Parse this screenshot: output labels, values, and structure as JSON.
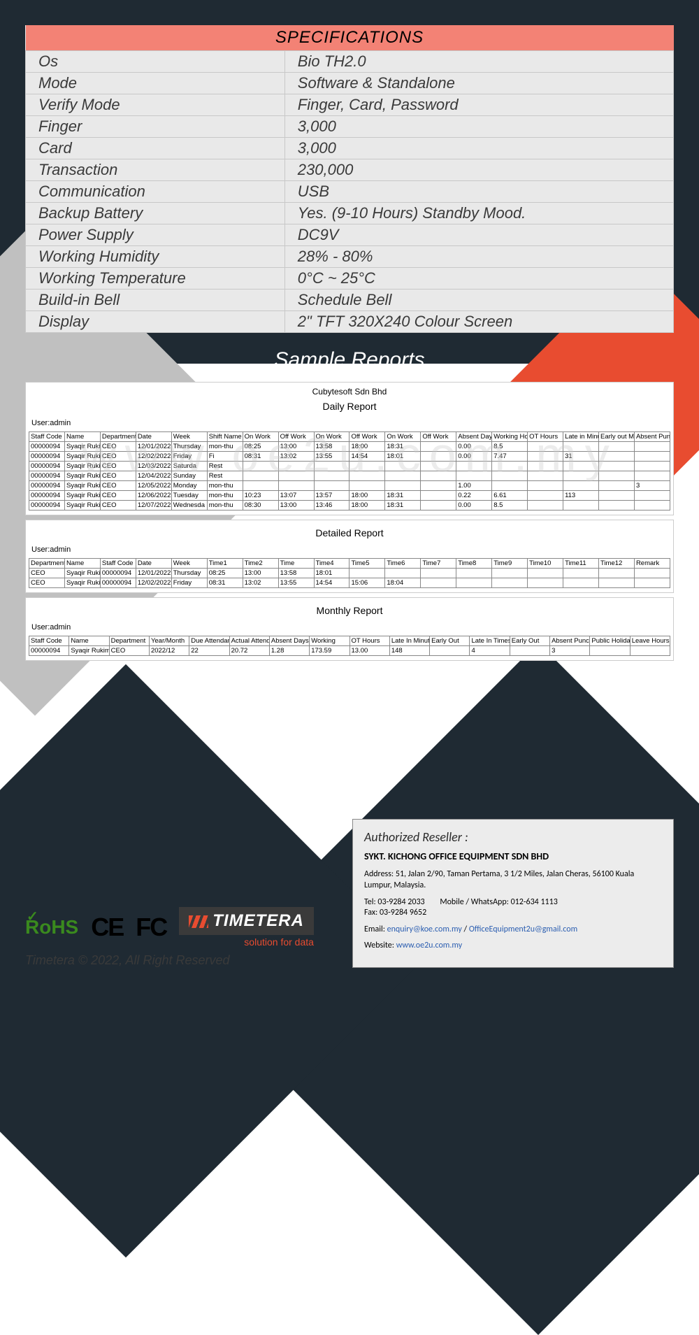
{
  "colors": {
    "dark": "#1f2a33",
    "orange": "#e84c30",
    "salmon": "#f38275",
    "grayBg": "#e9e9e9",
    "grayTri": "#c0c0c0",
    "link": "#2a5db0"
  },
  "specTable": {
    "header": "SPECIFICATIONS",
    "rows": [
      {
        "label": "Os",
        "value": "Bio TH2.0"
      },
      {
        "label": "Mode",
        "value": "Software & Standalone"
      },
      {
        "label": "Verify Mode",
        "value": "Finger, Card, Password"
      },
      {
        "label": "Finger",
        "value": "3,000"
      },
      {
        "label": "Card",
        "value": "3,000"
      },
      {
        "label": "Transaction",
        "value": "230,000"
      },
      {
        "label": "Communication",
        "value": "USB"
      },
      {
        "label": "Backup Battery",
        "value": "Yes. (9-10 Hours) Standby Mood."
      },
      {
        "label": "Power Supply",
        "value": "DC9V"
      },
      {
        "label": "Working Humidity",
        "value": "28% - 80%"
      },
      {
        "label": "Working Temperature",
        "value": "0°C ~ 25°C"
      },
      {
        "label": "Build-in Bell",
        "value": "Schedule Bell"
      },
      {
        "label": "Display",
        "value": "2\" TFT 320X240 Colour Screen"
      }
    ]
  },
  "sectionTitle": "Sample Reports",
  "watermark": "www.oe2u.com.my",
  "dailyReport": {
    "company": "Cubytesoft Sdn Bhd",
    "title": "Daily Report",
    "user": "User:admin",
    "columns": [
      "Staff Code",
      "Name",
      "Department",
      "Date",
      "Week",
      "Shift Name",
      "On Work",
      "Off Work",
      "On Work",
      "Off Work",
      "On Work",
      "Off Work",
      "Absent Days",
      "Working Hours",
      "OT Hours",
      "Late in Minutes",
      "Early out Minutes",
      "Absent Punch"
    ],
    "rows": [
      [
        "00000094",
        "Syaqir Rukimin",
        "CEO",
        "12/01/2022",
        "Thursday",
        "mon-thu",
        "08:25",
        "13:00",
        "13:58",
        "18:00",
        "18:31",
        "",
        "0.00",
        "8.5",
        "",
        "",
        "",
        ""
      ],
      [
        "00000094",
        "Syaqir Rukimin",
        "CEO",
        "12/02/2022",
        "Friday",
        "Fi",
        "08:31",
        "13:02",
        "13:55",
        "14:54",
        "18:01",
        "",
        "0.00",
        "7.47",
        "",
        "31",
        "",
        ""
      ],
      [
        "00000094",
        "Syaqir Rukimin",
        "CEO",
        "12/03/2022",
        "Saturda",
        "Rest",
        "",
        "",
        "",
        "",
        "",
        "",
        "",
        "",
        "",
        "",
        "",
        ""
      ],
      [
        "00000094",
        "Syaqir Rukimin",
        "CEO",
        "12/04/2022",
        "Sunday",
        "Rest",
        "",
        "",
        "",
        "",
        "",
        "",
        "",
        "",
        "",
        "",
        "",
        ""
      ],
      [
        "00000094",
        "Syaqir Rukimin",
        "CEO",
        "12/05/2022",
        "Monday",
        "mon-thu",
        "",
        "",
        "",
        "",
        "",
        "",
        "1.00",
        "",
        "",
        "",
        "",
        "3"
      ],
      [
        "00000094",
        "Syaqir Rukimin",
        "CEO",
        "12/06/2022",
        "Tuesday",
        "mon-thu",
        "10:23",
        "13:07",
        "13:57",
        "18:00",
        "18:31",
        "",
        "0.22",
        "6.61",
        "",
        "113",
        "",
        ""
      ],
      [
        "00000094",
        "Syaqir Rukimin",
        "CEO",
        "12/07/2022",
        "Wednesda",
        "mon-thu",
        "08:30",
        "13:00",
        "13:46",
        "18:00",
        "18:31",
        "",
        "0.00",
        "8.5",
        "",
        "",
        "",
        ""
      ]
    ]
  },
  "detailedReport": {
    "title": "Detailed Report",
    "user": "User:admin",
    "columns": [
      "Department",
      "Name",
      "Staff Code",
      "Date",
      "Week",
      "Time1",
      "Time2",
      "Time",
      "Time4",
      "Time5",
      "Time6",
      "Time7",
      "Time8",
      "Time9",
      "Time10",
      "Time11",
      "Time12",
      "Remark"
    ],
    "rows": [
      [
        "CEO",
        "Syaqir Rukimin",
        "00000094",
        "12/01/2022",
        "Thursday",
        "08:25",
        "13:00",
        "13:58",
        "18:01",
        "",
        "",
        "",
        "",
        "",
        "",
        "",
        "",
        ""
      ],
      [
        "CEO",
        "Syaqir Rukimin",
        "00000094",
        "12/02/2022",
        "Friday",
        "08:31",
        "13:02",
        "13:55",
        "14:54",
        "15:06",
        "18:04",
        "",
        "",
        "",
        "",
        "",
        "",
        ""
      ]
    ]
  },
  "monthlyReport": {
    "title": "Monthly Report",
    "user": "User:admin",
    "columns": [
      "Staff Code",
      "Name",
      "Department",
      "Year/Month",
      "Due Attendance",
      "Actual Attendance",
      "Absent Days",
      "Working",
      "OT Hours",
      "Late In Minutes",
      "Early Out",
      "Late In Times",
      "Early Out",
      "Absent Punch",
      "Public Holiday",
      "Leave Hours"
    ],
    "rows": [
      [
        "00000094",
        "Syaqir Rukimin",
        "CEO",
        "2022/12",
        "22",
        "20.72",
        "1.28",
        "173.59",
        "13.00",
        "148",
        "",
        "4",
        "",
        "3",
        "",
        ""
      ]
    ]
  },
  "reseller": {
    "title": "Authorized Reseller :",
    "name": "SYKT. KICHONG OFFICE EQUIPMENT SDN BHD",
    "address": "Address: 51, Jalan 2/90, Taman Pertama, 3 1/2 Miles, Jalan Cheras, 56100 Kuala Lumpur, Malaysia.",
    "tel": "Tel: 03-9284 2033",
    "mobile": "Mobile / WhatsApp: 012-634 1113",
    "fax": "Fax: 03-9284 9652",
    "emailLabel": "Email: ",
    "email1": "enquiry@koe.com.my",
    "emailSep": " / ",
    "email2": "OfficeEquipment2u@gmail.com",
    "websiteLabel": "Website: ",
    "website": "www.oe2u.com.my"
  },
  "footer": {
    "rohs": "RoHS",
    "ce": "CE",
    "fc": "FC",
    "timetera": "TIMETERA",
    "timeteraSub": "solution for data",
    "copyright": "Timetera © 2022, All Right Reserved"
  }
}
